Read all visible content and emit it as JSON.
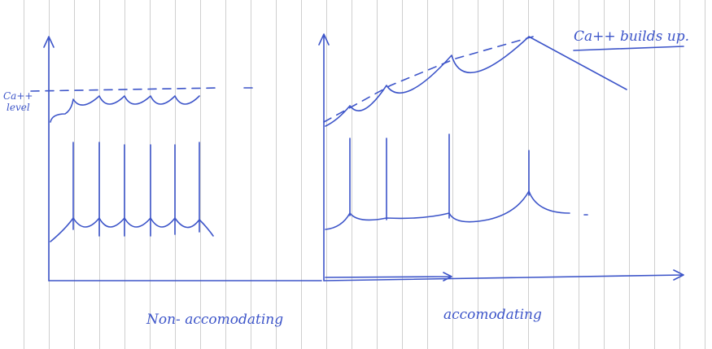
{
  "left_panel": {
    "y_label": [
      "Ca++",
      "level"
    ],
    "caption": "Non- accomodating"
  },
  "right_panel": {
    "note": "Ca++ builds up.",
    "caption": "accomodating"
  }
}
